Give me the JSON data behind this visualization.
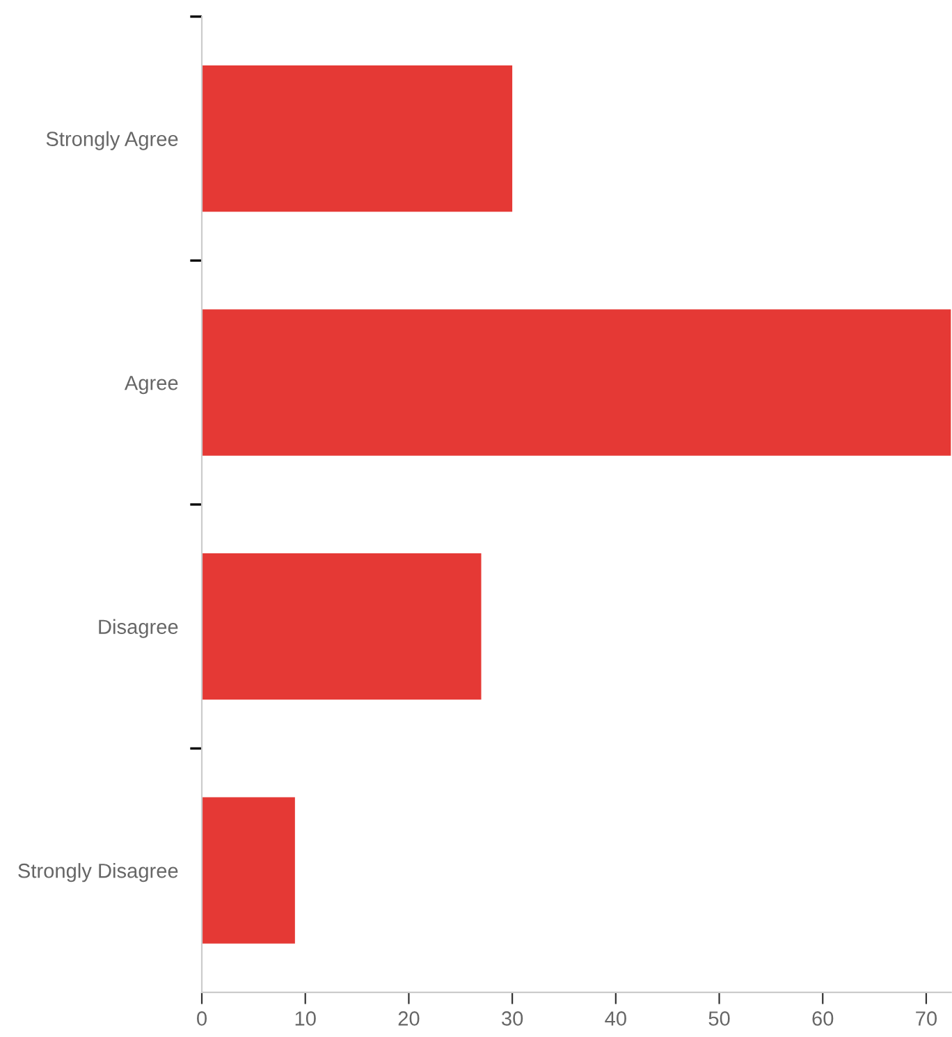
{
  "chart_data": {
    "type": "bar",
    "orientation": "horizontal",
    "categories": [
      "Strongly Agree",
      "Agree",
      "Disagree",
      "Strongly Disagree"
    ],
    "values": [
      30,
      72.4,
      27,
      9
    ],
    "color": "#e53935",
    "xlim": [
      0,
      72.4
    ],
    "xticks": [
      0,
      10,
      20,
      30,
      40,
      50,
      60,
      70
    ],
    "grid": false,
    "legend": false
  }
}
